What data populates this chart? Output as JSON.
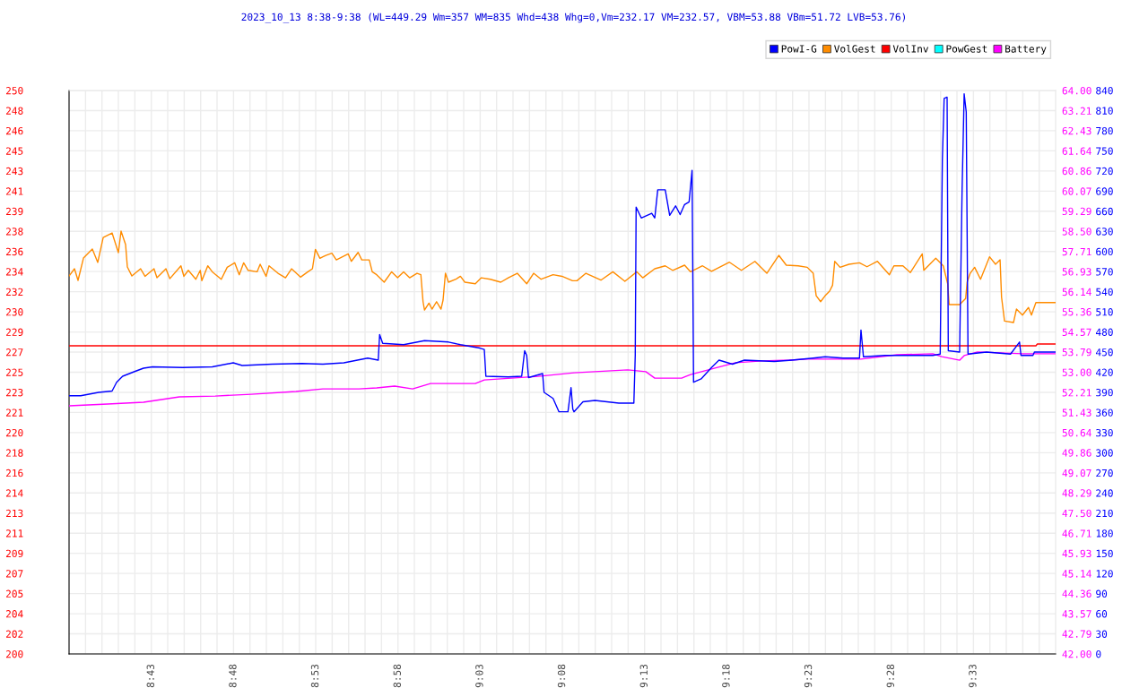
{
  "chart_data": {
    "type": "line",
    "title": "2023_10_13 8:38-9:38 (WL=449.29 Wm=357 WM=835 Whd=438 Whg=0,Vm=232.17 VM=232.57, VBM=53.88 VBm=51.72 LVB=53.76)",
    "legend": "top right",
    "grid": true,
    "xlim": [
      8.6333,
      9.6333
    ],
    "xticks": [
      {
        "value": 8.65,
        "label": null
      },
      {
        "value": 8.6667,
        "label": null
      },
      {
        "value": 8.6833,
        "label": null
      },
      {
        "value": 8.7,
        "label": null
      },
      {
        "value": 8.7167,
        "label": "8:43"
      },
      {
        "value": 8.7333,
        "label": null
      },
      {
        "value": 8.75,
        "label": null
      },
      {
        "value": 8.7667,
        "label": null
      },
      {
        "value": 8.7833,
        "label": null
      },
      {
        "value": 8.8,
        "label": "8:48"
      },
      {
        "value": 8.8167,
        "label": null
      },
      {
        "value": 8.8333,
        "label": null
      },
      {
        "value": 8.85,
        "label": null
      },
      {
        "value": 8.8667,
        "label": null
      },
      {
        "value": 8.8833,
        "label": "8:53"
      },
      {
        "value": 8.9,
        "label": null
      },
      {
        "value": 8.9167,
        "label": null
      },
      {
        "value": 8.9333,
        "label": null
      },
      {
        "value": 8.95,
        "label": null
      },
      {
        "value": 8.9667,
        "label": "8:58"
      },
      {
        "value": 8.9833,
        "label": null
      },
      {
        "value": 9.0,
        "label": null
      },
      {
        "value": 9.0167,
        "label": null
      },
      {
        "value": 9.0333,
        "label": null
      },
      {
        "value": 9.05,
        "label": "9:03"
      },
      {
        "value": 9.0667,
        "label": null
      },
      {
        "value": 9.0833,
        "label": null
      },
      {
        "value": 9.1,
        "label": null
      },
      {
        "value": 9.1167,
        "label": null
      },
      {
        "value": 9.1333,
        "label": "9:08"
      },
      {
        "value": 9.15,
        "label": null
      },
      {
        "value": 9.1667,
        "label": null
      },
      {
        "value": 9.1833,
        "label": null
      },
      {
        "value": 9.2,
        "label": null
      },
      {
        "value": 9.2167,
        "label": "9:13"
      },
      {
        "value": 9.2333,
        "label": null
      },
      {
        "value": 9.25,
        "label": null
      },
      {
        "value": 9.2667,
        "label": null
      },
      {
        "value": 9.2833,
        "label": null
      },
      {
        "value": 9.3,
        "label": "9:18"
      },
      {
        "value": 9.3167,
        "label": null
      },
      {
        "value": 9.3333,
        "label": null
      },
      {
        "value": 9.35,
        "label": null
      },
      {
        "value": 9.3667,
        "label": null
      },
      {
        "value": 9.3833,
        "label": "9:23"
      },
      {
        "value": 9.4,
        "label": null
      },
      {
        "value": 9.4167,
        "label": null
      },
      {
        "value": 9.4333,
        "label": null
      },
      {
        "value": 9.45,
        "label": null
      },
      {
        "value": 9.4667,
        "label": "9:28"
      },
      {
        "value": 9.4833,
        "label": null
      },
      {
        "value": 9.5,
        "label": null
      },
      {
        "value": 9.5167,
        "label": null
      },
      {
        "value": 9.5333,
        "label": null
      },
      {
        "value": 9.55,
        "label": "9:33"
      },
      {
        "value": 9.5667,
        "label": null
      },
      {
        "value": 9.5833,
        "label": null
      },
      {
        "value": 9.6,
        "label": null
      },
      {
        "value": 9.6167,
        "label": null
      }
    ],
    "ylim": [
      200,
      250
    ],
    "yticks": [
      200,
      {
        "value": 201.786,
        "label": "202"
      },
      {
        "value": 203.571,
        "label": "204"
      },
      {
        "value": 205.357,
        "label": "205"
      },
      {
        "value": 207.143,
        "label": "207"
      },
      {
        "value": 208.929,
        "label": "209"
      },
      {
        "value": 210.714,
        "label": "211"
      },
      {
        "value": 212.5,
        "label": "213"
      },
      {
        "value": 214.286,
        "label": "214"
      },
      {
        "value": 216.071,
        "label": "216"
      },
      {
        "value": 217.857,
        "label": "218"
      },
      {
        "value": 219.643,
        "label": "220"
      },
      {
        "value": 221.429,
        "label": "221"
      },
      {
        "value": 223.214,
        "label": "223"
      },
      225,
      {
        "value": 226.786,
        "label": "227"
      },
      {
        "value": 228.571,
        "label": "229"
      },
      {
        "value": 230.357,
        "label": "230"
      },
      {
        "value": 232.143,
        "label": "232"
      },
      {
        "value": 233.929,
        "label": "234"
      },
      {
        "value": 235.714,
        "label": "236"
      },
      {
        "value": 237.5,
        "label": "238"
      },
      {
        "value": 239.286,
        "label": "239"
      },
      {
        "value": 241.071,
        "label": "241"
      },
      {
        "value": 242.857,
        "label": "243"
      },
      {
        "value": 244.643,
        "label": "245"
      },
      {
        "value": 246.429,
        "label": "246"
      },
      {
        "value": 248.214,
        "label": "248"
      },
      250
    ],
    "y2lim": [
      42,
      64
    ],
    "y2ticks": [
      {
        "value": 42,
        "label": "42.00"
      },
      {
        "value": 42.79,
        "label": "42.79"
      },
      {
        "value": 43.57,
        "label": "43.57"
      },
      {
        "value": 44.36,
        "label": "44.36"
      },
      {
        "value": 45.14,
        "label": "45.14"
      },
      {
        "value": 45.93,
        "label": "45.93"
      },
      {
        "value": 46.71,
        "label": "46.71"
      },
      {
        "value": 47.5,
        "label": "47.50"
      },
      {
        "value": 48.29,
        "label": "48.29"
      },
      {
        "value": 49.07,
        "label": "49.07"
      },
      {
        "value": 49.86,
        "label": "49.86"
      },
      {
        "value": 50.64,
        "label": "50.64"
      },
      {
        "value": 51.43,
        "label": "51.43"
      },
      {
        "value": 52.21,
        "label": "52.21"
      },
      {
        "value": 53,
        "label": "53.00"
      },
      {
        "value": 53.79,
        "label": "53.79"
      },
      {
        "value": 54.57,
        "label": "54.57"
      },
      {
        "value": 55.36,
        "label": "55.36"
      },
      {
        "value": 56.14,
        "label": "56.14"
      },
      {
        "value": 56.93,
        "label": "56.93"
      },
      {
        "value": 57.71,
        "label": "57.71"
      },
      {
        "value": 58.5,
        "label": "58.50"
      },
      {
        "value": 59.29,
        "label": "59.29"
      },
      {
        "value": 60.07,
        "label": "60.07"
      },
      {
        "value": 60.86,
        "label": "60.86"
      },
      {
        "value": 61.64,
        "label": "61.64"
      },
      {
        "value": 62.43,
        "label": "62.43"
      },
      {
        "value": 63.21,
        "label": "63.21"
      },
      {
        "value": 64,
        "label": "64.00"
      }
    ],
    "y3lim": [
      0,
      840
    ],
    "y3ticks": [
      0,
      30,
      60,
      90,
      120,
      150,
      180,
      210,
      240,
      270,
      300,
      330,
      360,
      390,
      420,
      450,
      480,
      510,
      540,
      570,
      600,
      630,
      660,
      690,
      720,
      750,
      780,
      810,
      840
    ],
    "series": [
      {
        "name": "PowI-G",
        "color": "#0000ff",
        "axis": "y3",
        "x": [
          8.6336,
          8.6451,
          8.6633,
          8.6769,
          8.6815,
          8.6876,
          8.6997,
          8.7088,
          8.7179,
          8.7482,
          8.7785,
          8.7997,
          8.8088,
          8.839,
          8.8694,
          8.8906,
          8.9118,
          8.936,
          8.9467,
          8.9481,
          8.9512,
          8.9724,
          8.9936,
          9.0179,
          9.03,
          9.0497,
          9.0542,
          9.0558,
          9.0785,
          9.0921,
          9.0951,
          9.0972,
          9.099,
          9.1133,
          9.1148,
          9.1239,
          9.1299,
          9.139,
          9.1421,
          9.1439,
          9.1451,
          9.1542,
          9.1663,
          9.1906,
          9.2058,
          9.2072,
          9.2081,
          9.2133,
          9.2239,
          9.227,
          9.23,
          9.2376,
          9.2421,
          9.2481,
          9.2527,
          9.2572,
          9.2618,
          9.2648,
          9.2663,
          9.274,
          9.2845,
          9.2921,
          9.3057,
          9.3179,
          9.3481,
          9.3663,
          9.3876,
          9.3997,
          9.4178,
          9.4345,
          9.436,
          9.4385,
          9.4603,
          9.4845,
          9.5088,
          9.5163,
          9.5185,
          9.5203,
          9.5233,
          9.5245,
          9.536,
          9.5385,
          9.5406,
          9.5427,
          9.5445,
          9.5633,
          9.5876,
          9.5967,
          9.5982,
          9.6103,
          9.6118,
          9.633
        ],
        "values": [
          385,
          385,
          390,
          392,
          405,
          414,
          421,
          426,
          428,
          427,
          428,
          434,
          430,
          432,
          433,
          432,
          434,
          441,
          438,
          476,
          463,
          461,
          467,
          465,
          461,
          456,
          454,
          414,
          413,
          414,
          452,
          445,
          412,
          418,
          390,
          381,
          361,
          361,
          397,
          365,
          361,
          376,
          378,
          374,
          374,
          445,
          666,
          650,
          657,
          650,
          692,
          692,
          654,
          668,
          655,
          670,
          674,
          721,
          405,
          410,
          427,
          438,
          432,
          438,
          436,
          438,
          441,
          443,
          441,
          441,
          483,
          443,
          445,
          445,
          445,
          447,
          737,
          828,
          830,
          452,
          450,
          692,
          835,
          808,
          447,
          450,
          447,
          465,
          445,
          445,
          450,
          450
        ]
      },
      {
        "name": "VolGest",
        "color": "#ff8c00",
        "x": [
          8.6333,
          8.6388,
          8.6424,
          8.6479,
          8.6569,
          8.6624,
          8.6679,
          8.6769,
          8.6833,
          8.686,
          8.6906,
          8.6924,
          8.697,
          8.7058,
          8.7103,
          8.7194,
          8.7224,
          8.7315,
          8.7354,
          8.7467,
          8.7497,
          8.7542,
          8.7618,
          8.7663,
          8.7679,
          8.7739,
          8.7785,
          8.7876,
          8.7936,
          8.8012,
          8.8058,
          8.8103,
          8.8148,
          8.8239,
          8.827,
          8.833,
          8.836,
          8.8451,
          8.8527,
          8.8588,
          8.8679,
          8.8754,
          8.88,
          8.883,
          8.8876,
          8.8906,
          8.8936,
          8.8997,
          8.9042,
          8.9163,
          8.9194,
          8.9263,
          8.93,
          8.9376,
          8.9406,
          8.9451,
          8.9527,
          8.9603,
          8.9663,
          8.9724,
          8.9785,
          8.986,
          8.9899,
          8.9921,
          8.9936,
          8.9981,
          9.0012,
          9.0058,
          9.0103,
          9.0124,
          9.0148,
          9.0179,
          9.0254,
          9.03,
          9.0345,
          9.0451,
          9.0512,
          9.0603,
          9.0709,
          9.0785,
          9.0876,
          9.0972,
          9.1042,
          9.1118,
          9.1239,
          9.133,
          9.1436,
          9.1481,
          9.1572,
          9.1724,
          9.1845,
          9.1967,
          9.2088,
          9.2148,
          9.227,
          9.2376,
          9.2451,
          9.2572,
          9.2633,
          9.2754,
          9.2845,
          9.3027,
          9.3148,
          9.3285,
          9.3406,
          9.3527,
          9.3603,
          9.3724,
          9.3815,
          9.3876,
          9.3906,
          9.3951,
          9.3997,
          9.4042,
          9.4072,
          9.4094,
          9.4148,
          9.4239,
          9.4345,
          9.4421,
          9.4527,
          9.4648,
          9.4694,
          9.4785,
          9.486,
          9.4981,
          9.4997,
          9.5118,
          9.5194,
          9.5239,
          9.5254,
          9.536,
          9.5421,
          9.5436,
          9.5467,
          9.5512,
          9.5572,
          9.5663,
          9.5724,
          9.577,
          9.5785,
          9.5815,
          9.5906,
          9.5936,
          9.5997,
          9.6058,
          9.6088,
          9.6133,
          9.633
        ],
        "values": [
          233.54,
          234.18,
          233.15,
          235.13,
          235.93,
          234.74,
          236.96,
          237.36,
          235.61,
          237.52,
          236.33,
          234.34,
          233.54,
          234.18,
          233.51,
          234.18,
          233.38,
          234.18,
          233.3,
          234.44,
          233.51,
          234.04,
          233.25,
          234.04,
          233.12,
          234.44,
          233.91,
          233.25,
          234.31,
          234.71,
          233.65,
          234.71,
          234.04,
          233.91,
          234.58,
          233.51,
          234.44,
          233.78,
          233.38,
          234.18,
          233.44,
          233.91,
          234.18,
          235.9,
          235.11,
          235.24,
          235.37,
          235.56,
          234.97,
          235.5,
          234.84,
          235.63,
          234.97,
          234.97,
          233.91,
          233.65,
          232.99,
          233.91,
          233.38,
          233.91,
          233.38,
          233.78,
          233.65,
          231.26,
          230.52,
          231.13,
          230.6,
          231.26,
          230.6,
          231.4,
          233.78,
          232.99,
          233.25,
          233.51,
          232.99,
          232.85,
          233.38,
          233.25,
          232.99,
          233.38,
          233.78,
          232.85,
          233.78,
          233.25,
          233.65,
          233.51,
          233.12,
          233.12,
          233.78,
          233.17,
          233.91,
          233.07,
          233.91,
          233.38,
          234.18,
          234.44,
          234.04,
          234.5,
          233.91,
          234.44,
          233.96,
          234.76,
          234.04,
          234.84,
          233.78,
          235.37,
          234.5,
          234.44,
          234.31,
          233.78,
          231.79,
          231.26,
          231.79,
          232.19,
          232.72,
          234.84,
          234.31,
          234.58,
          234.71,
          234.36,
          234.84,
          233.65,
          234.44,
          234.44,
          233.84,
          235.5,
          234.04,
          235.11,
          234.44,
          232.85,
          231,
          231,
          231.53,
          232.99,
          233.78,
          234.31,
          233.25,
          235.24,
          234.58,
          234.97,
          231.66,
          229.54,
          229.41,
          230.6,
          230.07,
          230.74,
          230.07,
          231.18,
          231.18
        ]
      },
      {
        "name": "VolInv",
        "color": "#ff0000",
        "x": [
          8.6333,
          8.85,
          9.05,
          9.25,
          9.45,
          9.6133,
          9.6148,
          9.633
        ],
        "values": [
          227.34,
          227.34,
          227.34,
          227.34,
          227.34,
          227.34,
          227.5,
          227.5
        ]
      },
      {
        "name": "PowGest",
        "color": "#00ffff"
      },
      {
        "name": "Battery",
        "color": "#ff00ff",
        "axis": "y2",
        "x": [
          8.6333,
          8.6724,
          8.7088,
          8.7452,
          8.7815,
          8.8179,
          8.8633,
          8.8906,
          8.927,
          8.9452,
          8.9633,
          8.9815,
          8.9997,
          9.0451,
          9.0542,
          9.1088,
          9.1452,
          9.1997,
          9.2179,
          9.227,
          9.2542,
          9.2633,
          9.2906,
          9.3088,
          9.3361,
          9.3633,
          9.3815,
          9.436,
          9.4724,
          9.5088,
          9.5179,
          9.5361,
          9.5406,
          9.5542,
          9.5997,
          9.6333
        ],
        "values": [
          51.69,
          51.76,
          51.83,
          52.04,
          52.07,
          52.14,
          52.25,
          52.35,
          52.35,
          52.39,
          52.46,
          52.35,
          52.56,
          52.56,
          52.7,
          52.84,
          52.98,
          53.09,
          53.02,
          52.77,
          52.77,
          52.91,
          53.19,
          53.37,
          53.44,
          53.47,
          53.51,
          53.51,
          53.68,
          53.72,
          53.61,
          53.47,
          53.65,
          53.79,
          53.72,
          53.72
        ]
      }
    ]
  }
}
